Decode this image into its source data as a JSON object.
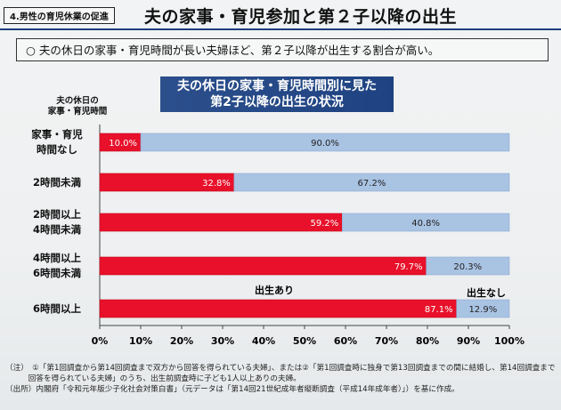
{
  "header": {
    "section_tag": "4.男性の育児休業の促進",
    "title": "夫の家事・育児参加と第２子以降の出生"
  },
  "summary": "○ 夫の休日の家事・育児時間が長い夫婦ほど、第２子以降が出生する割合が高い。",
  "chart_data": {
    "type": "bar",
    "orientation": "horizontal",
    "stacked": true,
    "title_lines": [
      "夫の休日の家事・育児時間別に見た",
      "第2子以降の出生の状況"
    ],
    "y_header_lines": [
      "夫の休日の",
      "家事・育児時間"
    ],
    "categories": [
      [
        "家事・育児",
        "時間なし"
      ],
      [
        "2時間未満"
      ],
      [
        "2時間以上",
        "4時間未満"
      ],
      [
        "4時間以上",
        "6時間未満"
      ],
      [
        "6時間以上"
      ]
    ],
    "series": [
      {
        "name": "出生あり",
        "color": "#e8102a",
        "values": [
          10.0,
          32.8,
          59.2,
          79.7,
          87.1
        ],
        "labels": [
          "10.0%",
          "32.8%",
          "59.2%",
          "79.7%",
          "87.1%"
        ]
      },
      {
        "name": "出生なし",
        "color": "#a9c3e3",
        "values": [
          90.0,
          67.2,
          40.8,
          20.3,
          12.9
        ],
        "labels": [
          "90.0%",
          "67.2%",
          "40.8%",
          "20.3%",
          "12.9%"
        ]
      }
    ],
    "xlim": [
      0,
      100
    ],
    "x_ticks": [
      "0%",
      "10%",
      "20%",
      "30%",
      "40%",
      "50%",
      "60%",
      "70%",
      "80%",
      "90%",
      "100%"
    ],
    "grid": false,
    "legend": "inline-annotations"
  },
  "notes": [
    "（注）　①「第1回調査から第14回調査まで双方から回答を得られている夫婦」、または②「第1回調査時に独身で第13回調査までの間に結婚し、第14回調査まで双方から",
    "　　　回答を得られている夫婦」のうち、出生前調査時に子ども1人以上ありの夫婦。",
    "（出所）内閣府「令和元年版少子化社会対策白書」（元データは「第14回21世紀成年者縦断調査（平成14年成年者）」）を基に作成。"
  ]
}
